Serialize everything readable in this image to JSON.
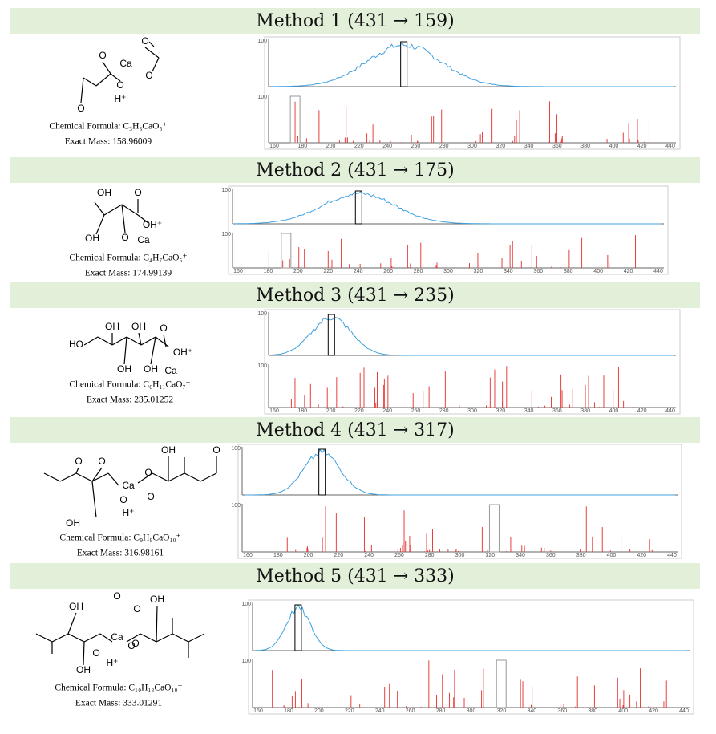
{
  "methods": [
    {
      "title": "Method 1 (431 → 159)",
      "formula": "Chemical Formula: C₃H₃CaO₅⁺",
      "mass": "Exact Mass: 158.96009",
      "atoms": [
        "O",
        "O",
        "Ca",
        "O",
        "O",
        "H⁺",
        "O"
      ]
    },
    {
      "title": "Method 2 (431 → 175)",
      "formula": "Chemical Formula: C₄H₇CaO₅⁺",
      "mass": "Exact Mass: 174.99139",
      "atoms": [
        "OH",
        "O",
        "OH⁺",
        "OH",
        "O",
        "Ca"
      ]
    },
    {
      "title": "Method 3 (431 → 235)",
      "formula": "Chemical Formula: C₆H₁₁CaO₇⁺",
      "mass": "Exact Mass: 235.01252",
      "atoms": [
        "OH",
        "OH",
        "HO",
        "OH⁺",
        "OH",
        "OH",
        "O",
        "Ca"
      ]
    },
    {
      "title": "Method 4 (431 → 317)",
      "formula": "Chemical Formula: C₉H₉CaO₁₀⁺",
      "mass": "Exact Mass: 316.98161",
      "atoms": [
        "O",
        "O",
        "Ca",
        "O",
        "OH",
        "O",
        "O",
        "O",
        "OH",
        "H⁺"
      ]
    },
    {
      "title": "Method 5 (431 → 333)",
      "formula": "Chemical Formula: C₁₀H₁₃CaO₁₀⁺",
      "mass": "Exact Mass: 333.01291",
      "atoms": [
        "OH",
        "O",
        "O",
        "Ca",
        "O",
        "OH",
        "O",
        "O",
        "OH",
        "H⁺"
      ]
    }
  ],
  "spectrum_axis": {
    "y_label": "100",
    "x_ticks": [
      160,
      180,
      200,
      220,
      240,
      260,
      280,
      300,
      320,
      340,
      360,
      380,
      400,
      420,
      440
    ]
  }
}
